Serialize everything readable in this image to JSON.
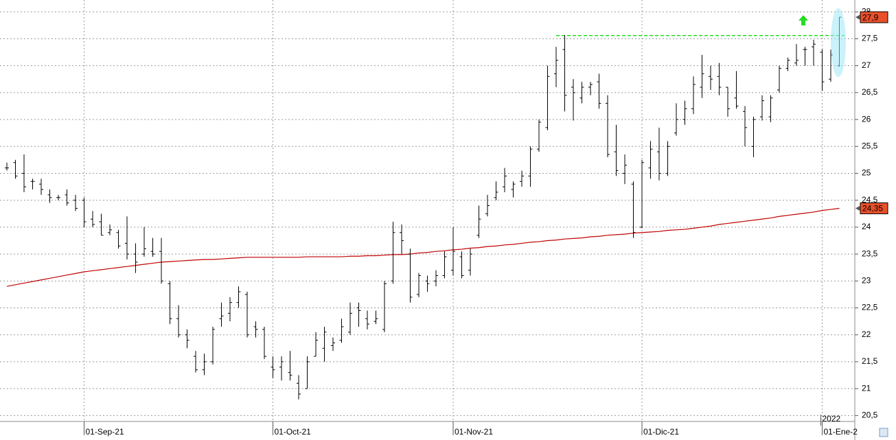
{
  "chart_data": {
    "type": "ohlc",
    "categories": [
      null,
      null,
      null,
      null,
      null,
      null,
      null,
      null,
      null,
      "01-Sep-21",
      null,
      null,
      null,
      null,
      null,
      null,
      null,
      null,
      null,
      null,
      null,
      null,
      null,
      null,
      null,
      null,
      null,
      null,
      null,
      null,
      null,
      "01-Oct-21",
      null,
      null,
      null,
      null,
      null,
      null,
      null,
      null,
      null,
      null,
      null,
      null,
      null,
      null,
      null,
      null,
      null,
      null,
      null,
      null,
      "01-Nov-21",
      null,
      null,
      null,
      null,
      null,
      null,
      null,
      null,
      null,
      null,
      null,
      null,
      null,
      null,
      null,
      null,
      null,
      null,
      null,
      null,
      null,
      "01-Dic-21",
      null,
      null,
      null,
      null,
      null,
      null,
      null,
      null,
      null,
      null,
      null,
      null,
      null,
      null,
      null,
      null,
      null,
      null,
      null,
      null,
      "01-Ene-2",
      null,
      null
    ],
    "year_label": "2022",
    "ohlc": {
      "color": "#000000",
      "open": [
        25.1,
        25.2,
        25.0,
        24.85,
        24.8,
        24.6,
        24.55,
        24.6,
        24.5,
        24.5,
        24.15,
        24.1,
        23.9,
        23.9,
        23.7,
        23.5,
        23.5,
        23.55,
        23.55,
        22.95,
        22.3,
        22.0,
        21.6,
        21.35,
        21.5,
        22.3,
        22.4,
        22.6,
        22.75,
        22.15,
        22.1,
        21.4,
        21.4,
        21.3,
        21.1,
        21.0,
        21.6,
        21.75,
        21.8,
        21.9,
        22.05,
        22.5,
        22.3,
        22.25,
        22.1,
        23.0,
        23.9,
        23.5,
        22.75,
        23.0,
        23.0,
        23.1,
        23.2,
        23.45,
        23.2,
        23.85,
        24.25,
        24.55,
        24.75,
        24.7,
        24.85,
        24.95,
        25.45,
        25.85,
        26.85,
        27.3,
        26.6,
        26.4,
        26.6,
        26.7,
        26.3,
        25.4,
        25.0,
        24.8,
        24.0,
        25.1,
        25.4,
        25.0,
        25.75,
        26.0,
        26.2,
        26.6,
        26.8,
        26.8,
        26.6,
        26.4,
        26.15,
        25.5,
        26.05,
        26.05,
        26.55,
        26.95,
        27.05,
        27.3,
        27.35,
        27.25,
        26.75,
        27.0
      ],
      "high": [
        25.2,
        25.25,
        25.35,
        24.9,
        24.9,
        24.7,
        24.6,
        24.7,
        24.6,
        24.55,
        24.3,
        24.25,
        24.05,
        23.95,
        24.2,
        23.7,
        24.0,
        23.8,
        23.8,
        23.0,
        22.55,
        22.1,
        21.7,
        21.65,
        22.15,
        22.6,
        22.7,
        22.9,
        22.8,
        22.25,
        22.15,
        21.6,
        21.6,
        21.7,
        21.25,
        21.6,
        22.05,
        22.15,
        21.95,
        22.3,
        22.6,
        22.6,
        22.45,
        22.45,
        23.0,
        24.1,
        24.05,
        23.6,
        23.15,
        23.1,
        23.2,
        23.55,
        24.0,
        23.55,
        23.6,
        24.4,
        24.6,
        24.85,
        25.1,
        24.85,
        25.05,
        25.5,
        26.0,
        27.0,
        27.35,
        27.57,
        26.75,
        26.7,
        26.7,
        26.85,
        26.45,
        25.9,
        25.35,
        24.85,
        25.25,
        25.6,
        25.85,
        25.6,
        26.3,
        26.35,
        26.8,
        27.2,
        27.0,
        27.05,
        26.6,
        26.9,
        26.25,
        26.05,
        26.45,
        26.45,
        27.0,
        27.15,
        27.4,
        27.35,
        27.48,
        27.3,
        27.3,
        27.9
      ],
      "low": [
        25.05,
        24.9,
        24.65,
        24.7,
        24.6,
        24.45,
        24.5,
        24.4,
        24.3,
        24.0,
        24.0,
        23.85,
        23.85,
        23.6,
        23.4,
        23.15,
        23.45,
        23.45,
        22.95,
        22.2,
        21.95,
        21.75,
        21.3,
        21.25,
        21.45,
        22.15,
        22.25,
        22.5,
        21.95,
        21.95,
        21.55,
        21.2,
        21.15,
        21.15,
        20.8,
        21.0,
        21.6,
        21.5,
        21.7,
        21.85,
        22.0,
        22.15,
        22.1,
        22.2,
        22.05,
        22.95,
        23.5,
        22.6,
        22.7,
        22.8,
        22.9,
        23.05,
        23.1,
        23.05,
        23.1,
        23.8,
        24.2,
        24.5,
        24.65,
        24.55,
        24.75,
        24.75,
        25.4,
        25.8,
        26.6,
        26.15,
        25.98,
        26.3,
        26.45,
        26.2,
        25.3,
        24.95,
        24.8,
        23.8,
        23.98,
        24.9,
        24.87,
        24.95,
        25.7,
        25.9,
        26.1,
        26.4,
        26.55,
        26.45,
        26.05,
        26.2,
        25.5,
        25.3,
        25.98,
        25.95,
        26.5,
        26.9,
        27.0,
        27.0,
        27.0,
        26.53,
        26.7,
        26.98
      ],
      "close": [
        25.1,
        24.95,
        24.75,
        24.85,
        24.7,
        24.55,
        24.55,
        24.45,
        24.35,
        24.1,
        24.05,
        23.85,
        23.95,
        23.65,
        23.5,
        23.35,
        23.6,
        23.5,
        23.0,
        22.3,
        22.0,
        21.9,
        21.35,
        21.5,
        22.1,
        22.35,
        22.6,
        22.8,
        22.0,
        22.1,
        21.6,
        21.35,
        21.5,
        21.25,
        20.9,
        21.5,
        21.9,
        22.05,
        21.85,
        22.15,
        22.4,
        22.45,
        22.2,
        22.3,
        22.95,
        23.9,
        23.75,
        22.7,
        23.1,
        22.95,
        23.1,
        23.45,
        23.55,
        23.1,
        23.5,
        24.15,
        24.4,
        24.65,
        24.95,
        24.8,
        24.95,
        25.45,
        25.95,
        26.8,
        27.1,
        26.45,
        26.5,
        26.6,
        26.65,
        26.3,
        25.35,
        25.05,
        25.15,
        23.9,
        25.2,
        25.45,
        25.0,
        25.5,
        26.0,
        26.2,
        26.65,
        26.85,
        26.75,
        26.6,
        26.2,
        26.25,
        25.85,
        26.0,
        26.35,
        26.4,
        26.95,
        27.1,
        27.1,
        27.3,
        27.4,
        26.7,
        27.2,
        27.9
      ]
    },
    "moving_average": {
      "color": "#c00000",
      "values": [
        22.9,
        22.93,
        22.96,
        22.99,
        23.02,
        23.05,
        23.08,
        23.11,
        23.14,
        23.17,
        23.19,
        23.21,
        23.23,
        23.25,
        23.27,
        23.29,
        23.31,
        23.33,
        23.35,
        23.36,
        23.37,
        23.38,
        23.39,
        23.4,
        23.4,
        23.41,
        23.42,
        23.43,
        23.44,
        23.44,
        23.44,
        23.44,
        23.44,
        23.44,
        23.44,
        23.45,
        23.45,
        23.45,
        23.45,
        23.45,
        23.46,
        23.46,
        23.47,
        23.47,
        23.48,
        23.49,
        23.49,
        23.5,
        23.52,
        23.53,
        23.55,
        23.56,
        23.58,
        23.59,
        23.61,
        23.62,
        23.64,
        23.65,
        23.67,
        23.68,
        23.7,
        23.72,
        23.73,
        23.75,
        23.76,
        23.78,
        23.79,
        23.8,
        23.82,
        23.83,
        23.85,
        23.86,
        23.87,
        23.89,
        23.9,
        23.91,
        23.92,
        23.94,
        23.95,
        23.96,
        23.98,
        24.0,
        24.02,
        24.05,
        24.07,
        24.09,
        24.11,
        24.13,
        24.15,
        24.17,
        24.2,
        24.22,
        24.24,
        24.26,
        24.28,
        24.31,
        24.33,
        24.35
      ]
    },
    "resistance": {
      "value": 27.56,
      "from": 64,
      "color": "#22dd22"
    },
    "price_labels": [
      {
        "value": 27.9,
        "label": "27,9",
        "color": "#e8502a"
      },
      {
        "value": 24.35,
        "label": "24,35",
        "color": "#e8502a"
      }
    ],
    "ylim": [
      20.39,
      28.22
    ],
    "yticks": [
      {
        "value": 20.5,
        "label": "20,5"
      },
      21,
      {
        "value": 21.5,
        "label": "21,5"
      },
      22,
      {
        "value": 22.5,
        "label": "22,5"
      },
      23,
      {
        "value": 23.5,
        "label": "23,5"
      },
      24,
      {
        "value": 24.5,
        "label": "24,5"
      },
      25,
      {
        "value": 25.5,
        "label": "25,5"
      },
      26,
      {
        "value": 26.5,
        "label": "26,5"
      },
      27,
      {
        "value": 27.5,
        "label": "27,5"
      },
      28
    ],
    "grid": true
  }
}
